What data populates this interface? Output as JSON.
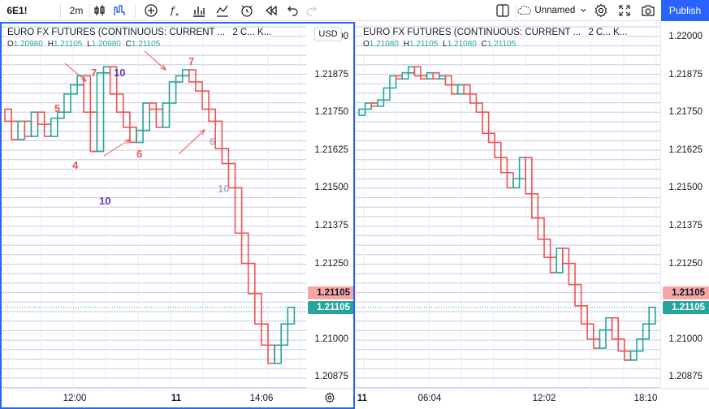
{
  "toolbar": {
    "symbol": "6E1!",
    "interval": "2m",
    "layout_name": "Unnamed",
    "publish_label": "Publish",
    "icons": [
      "candles-icon",
      "hlc-bars-icon",
      "add-indicator-icon",
      "fx-icon",
      "compare-icon",
      "alert-icon",
      "replay-icon",
      "undo-icon",
      "redo-icon",
      "layout-icon",
      "cloud-icon",
      "settings-icon",
      "fullscreen-icon",
      "camera-icon"
    ]
  },
  "colors": {
    "up": "#26a69a",
    "down": "#ef5350",
    "accent": "#2962ff",
    "grid": "#b2b5e0"
  },
  "left_pane": {
    "title": "EURO FX FUTURES (CONTINUOUS: CURRENT ...",
    "title_extra": "2  C...  K...",
    "currency": "USD",
    "ohlc": {
      "o_label": "O",
      "o": "1.20980",
      "h_label": "H",
      "h": "1.21105",
      "l_label": "L",
      "l": "1.20980",
      "c_label": "C",
      "c": "1.21105"
    },
    "price_ticks": [
      "1.22000",
      "1.21875",
      "1.21750",
      "1.21625",
      "1.21500",
      "1.21375",
      "1.21250",
      "1.21000",
      "1.20875"
    ],
    "last_price_red": "1.21105",
    "last_price_green": "1.21105",
    "time_ticks": [
      "12:00",
      "11",
      "14:06"
    ],
    "annotations": [
      {
        "text": "7",
        "color": "#ef5350"
      },
      {
        "text": "10",
        "color": "#673ab7"
      },
      {
        "text": "5",
        "color": "#ef5350"
      },
      {
        "text": "4",
        "color": "#ef5350"
      },
      {
        "text": "10",
        "color": "#673ab7"
      },
      {
        "text": "6",
        "color": "#ef5350"
      },
      {
        "text": "7",
        "color": "#ef5350"
      },
      {
        "text": "6",
        "color": "#b0b3c0"
      },
      {
        "text": "10",
        "color": "#b0b3c0"
      }
    ]
  },
  "right_pane": {
    "title": "EURO FX FUTURES (CONTINUOUS: CURRENT ...",
    "title_extra": "2  C...  K...",
    "ohlc": {
      "o_label": "O",
      "o": "1.21080",
      "h_label": "H",
      "h": "1.21105",
      "l_label": "L",
      "l": "1.21080",
      "c_label": "C",
      "c": "1.21105"
    },
    "price_ticks": [
      "1.22000",
      "1.21875",
      "1.21750",
      "1.21625",
      "1.21500",
      "1.21375",
      "1.21250",
      "1.21000",
      "1.20875"
    ],
    "last_price_red": "1.21105",
    "last_price_green": "1.21105",
    "time_ticks": [
      "11",
      "06:04",
      "12:02",
      "18:10"
    ]
  },
  "chart_data": [
    {
      "type": "line",
      "title": "EURO FX FUTURES (CONTINUOUS: CURRENT ...",
      "style": "step-box renko-like",
      "ylim": [
        1.2084,
        1.2205
      ],
      "ylabel": "USD",
      "series": [
        {
          "values": [
            1.2176,
            1.2172,
            1.2166,
            1.2172,
            1.2167,
            1.2175,
            1.2171,
            1.2167,
            1.2173,
            1.2175,
            1.2181,
            1.2184,
            1.2187,
            1.2175,
            1.2162,
            1.2188,
            1.219,
            1.2181,
            1.2175,
            1.217,
            1.2165,
            1.2169,
            1.2178,
            1.2176,
            1.217,
            1.2178,
            1.2185,
            1.2187,
            1.2189,
            1.2185,
            1.2182,
            1.2176,
            1.2172,
            1.2163,
            1.2158,
            1.215,
            1.2135,
            1.2125,
            1.2115,
            1.2105,
            1.2098,
            1.2092,
            1.2098,
            1.2105,
            1.21105
          ]
        }
      ]
    },
    {
      "type": "line",
      "title": "EURO FX FUTURES (CONTINUOUS: CURRENT ...",
      "style": "step-box renko-like",
      "ylim": [
        1.2084,
        1.2205
      ],
      "series": [
        {
          "values": [
            1.2174,
            1.2176,
            1.2178,
            1.2177,
            1.2179,
            1.2183,
            1.2187,
            1.2186,
            1.2188,
            1.219,
            1.2187,
            1.2186,
            1.2188,
            1.2186,
            1.2187,
            1.2184,
            1.2181,
            1.2184,
            1.2181,
            1.2178,
            1.2175,
            1.2168,
            1.2165,
            1.216,
            1.2155,
            1.215,
            1.2153,
            1.216,
            1.2148,
            1.214,
            1.2133,
            1.2127,
            1.2122,
            1.213,
            1.2125,
            1.2118,
            1.2111,
            1.2105,
            1.21,
            1.2097,
            1.2103,
            1.2107,
            1.21,
            1.2096,
            1.2093,
            1.2096,
            1.21,
            1.2105,
            1.21105
          ]
        }
      ]
    }
  ]
}
